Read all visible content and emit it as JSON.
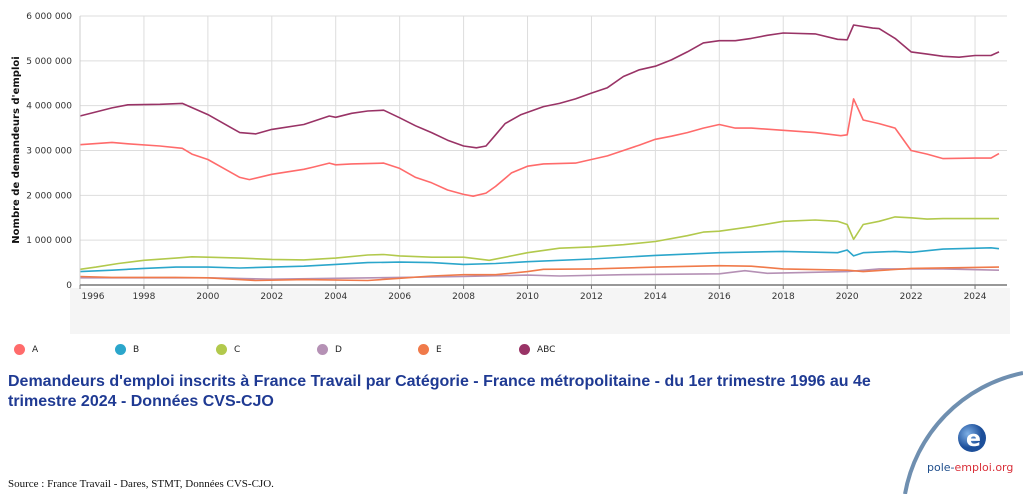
{
  "chart_data": {
    "type": "line",
    "title": "Demandeurs d'emploi inscrits à France Travail par Catégorie - France métropolitaine - du 1er trimestre 1996 au 4e trimestre 2024 - Données CVS-CJO",
    "xlabel": "",
    "ylabel": "Nombre de demandeurs d'emploi",
    "xlim": [
      1996,
      2025
    ],
    "ylim": [
      0,
      6000000
    ],
    "x_ticks": [
      "1996",
      "1998",
      "2000",
      "2002",
      "2004",
      "2006",
      "2008",
      "2010",
      "2012",
      "2014",
      "2016",
      "2018",
      "2020",
      "2022",
      "2024"
    ],
    "y_ticks": [
      "0",
      "1 000 000",
      "2 000 000",
      "3 000 000",
      "4 000 000",
      "5 000 000",
      "6 000 000"
    ],
    "grid": true,
    "legend_position": "bottom",
    "series": [
      {
        "name": "A",
        "color": "#ff6b6b",
        "points": [
          [
            1996,
            3130000
          ],
          [
            1997,
            3180000
          ],
          [
            1997.5,
            3150000
          ],
          [
            1998.5,
            3100000
          ],
          [
            1999.2,
            3050000
          ],
          [
            1999.5,
            2920000
          ],
          [
            2000,
            2800000
          ],
          [
            2000.5,
            2600000
          ],
          [
            2001,
            2400000
          ],
          [
            2001.3,
            2350000
          ],
          [
            2002,
            2470000
          ],
          [
            2003,
            2580000
          ],
          [
            2003.3,
            2630000
          ],
          [
            2003.8,
            2720000
          ],
          [
            2004,
            2680000
          ],
          [
            2004.5,
            2700000
          ],
          [
            2005.5,
            2720000
          ],
          [
            2006,
            2600000
          ],
          [
            2006.5,
            2400000
          ],
          [
            2007,
            2280000
          ],
          [
            2007.5,
            2120000
          ],
          [
            2008,
            2020000
          ],
          [
            2008.3,
            1980000
          ],
          [
            2008.7,
            2050000
          ],
          [
            2009,
            2200000
          ],
          [
            2009.5,
            2500000
          ],
          [
            2010,
            2650000
          ],
          [
            2010.5,
            2700000
          ],
          [
            2011.5,
            2720000
          ],
          [
            2012,
            2800000
          ],
          [
            2012.5,
            2880000
          ],
          [
            2013,
            3000000
          ],
          [
            2013.5,
            3120000
          ],
          [
            2014,
            3250000
          ],
          [
            2014.5,
            3320000
          ],
          [
            2015,
            3400000
          ],
          [
            2015.5,
            3500000
          ],
          [
            2016,
            3580000
          ],
          [
            2016.5,
            3500000
          ],
          [
            2017,
            3500000
          ],
          [
            2018,
            3450000
          ],
          [
            2019,
            3400000
          ],
          [
            2019.8,
            3330000
          ],
          [
            2020,
            3350000
          ],
          [
            2020.2,
            4150000
          ],
          [
            2020.5,
            3680000
          ],
          [
            2021,
            3600000
          ],
          [
            2021.5,
            3500000
          ],
          [
            2022,
            3000000
          ],
          [
            2022.5,
            2920000
          ],
          [
            2023,
            2820000
          ],
          [
            2024,
            2830000
          ],
          [
            2024.5,
            2830000
          ],
          [
            2024.75,
            2930000
          ]
        ]
      },
      {
        "name": "B",
        "color": "#2ba6cb",
        "points": [
          [
            1996,
            300000
          ],
          [
            1997,
            330000
          ],
          [
            1998,
            370000
          ],
          [
            1999,
            400000
          ],
          [
            2000,
            400000
          ],
          [
            2001,
            380000
          ],
          [
            2002,
            400000
          ],
          [
            2003,
            420000
          ],
          [
            2004,
            460000
          ],
          [
            2005,
            500000
          ],
          [
            2006,
            510000
          ],
          [
            2007,
            500000
          ],
          [
            2008,
            460000
          ],
          [
            2009,
            480000
          ],
          [
            2010,
            520000
          ],
          [
            2012,
            580000
          ],
          [
            2014,
            660000
          ],
          [
            2016,
            720000
          ],
          [
            2018,
            750000
          ],
          [
            2019.7,
            720000
          ],
          [
            2020,
            780000
          ],
          [
            2020.2,
            650000
          ],
          [
            2020.5,
            720000
          ],
          [
            2021.5,
            750000
          ],
          [
            2022,
            730000
          ],
          [
            2023,
            800000
          ],
          [
            2024.5,
            830000
          ],
          [
            2024.75,
            810000
          ]
        ]
      },
      {
        "name": "C",
        "color": "#b2c94c",
        "points": [
          [
            1996,
            350000
          ],
          [
            1996.5,
            400000
          ],
          [
            1997.2,
            480000
          ],
          [
            1998,
            550000
          ],
          [
            1999,
            600000
          ],
          [
            1999.5,
            630000
          ],
          [
            2000,
            620000
          ],
          [
            2001,
            600000
          ],
          [
            2002,
            570000
          ],
          [
            2003,
            560000
          ],
          [
            2004,
            600000
          ],
          [
            2005,
            670000
          ],
          [
            2005.5,
            680000
          ],
          [
            2006,
            650000
          ],
          [
            2007,
            620000
          ],
          [
            2008,
            620000
          ],
          [
            2008.8,
            550000
          ],
          [
            2009.5,
            650000
          ],
          [
            2010,
            720000
          ],
          [
            2011,
            820000
          ],
          [
            2012,
            850000
          ],
          [
            2013,
            900000
          ],
          [
            2014,
            970000
          ],
          [
            2015,
            1100000
          ],
          [
            2015.5,
            1180000
          ],
          [
            2016,
            1200000
          ],
          [
            2017,
            1300000
          ],
          [
            2018,
            1420000
          ],
          [
            2019,
            1450000
          ],
          [
            2019.7,
            1420000
          ],
          [
            2020,
            1350000
          ],
          [
            2020.2,
            1020000
          ],
          [
            2020.5,
            1350000
          ],
          [
            2021,
            1420000
          ],
          [
            2021.5,
            1520000
          ],
          [
            2022,
            1500000
          ],
          [
            2022.5,
            1470000
          ],
          [
            2023,
            1480000
          ],
          [
            2024.75,
            1480000
          ]
        ]
      },
      {
        "name": "D",
        "color": "#b591b5",
        "points": [
          [
            1996,
            160000
          ],
          [
            1998,
            160000
          ],
          [
            2000,
            160000
          ],
          [
            2002,
            130000
          ],
          [
            2004,
            150000
          ],
          [
            2006,
            170000
          ],
          [
            2008,
            190000
          ],
          [
            2010,
            220000
          ],
          [
            2011,
            200000
          ],
          [
            2013,
            230000
          ],
          [
            2016,
            250000
          ],
          [
            2016.8,
            320000
          ],
          [
            2017.5,
            260000
          ],
          [
            2020,
            300000
          ],
          [
            2021,
            360000
          ],
          [
            2023,
            360000
          ],
          [
            2024.75,
            330000
          ]
        ]
      },
      {
        "name": "E",
        "color": "#f07a4a",
        "points": [
          [
            1996,
            190000
          ],
          [
            1997,
            170000
          ],
          [
            1999,
            170000
          ],
          [
            2000,
            160000
          ],
          [
            2001.5,
            100000
          ],
          [
            2003,
            120000
          ],
          [
            2005,
            100000
          ],
          [
            2006,
            150000
          ],
          [
            2007,
            200000
          ],
          [
            2008,
            230000
          ],
          [
            2009,
            230000
          ],
          [
            2010,
            300000
          ],
          [
            2010.5,
            350000
          ],
          [
            2012,
            360000
          ],
          [
            2014,
            400000
          ],
          [
            2016,
            430000
          ],
          [
            2017,
            420000
          ],
          [
            2018,
            360000
          ],
          [
            2020,
            330000
          ],
          [
            2020.5,
            300000
          ],
          [
            2022,
            370000
          ],
          [
            2024.75,
            400000
          ]
        ]
      },
      {
        "name": "ABC",
        "color": "#993366",
        "points": [
          [
            1996,
            3770000
          ],
          [
            1997,
            3950000
          ],
          [
            1997.5,
            4020000
          ],
          [
            1998.5,
            4030000
          ],
          [
            1999.2,
            4050000
          ],
          [
            2000,
            3800000
          ],
          [
            2000.5,
            3600000
          ],
          [
            2001,
            3400000
          ],
          [
            2001.5,
            3370000
          ],
          [
            2002,
            3470000
          ],
          [
            2003,
            3580000
          ],
          [
            2003.8,
            3770000
          ],
          [
            2004,
            3740000
          ],
          [
            2004.5,
            3830000
          ],
          [
            2005,
            3880000
          ],
          [
            2005.5,
            3900000
          ],
          [
            2006,
            3730000
          ],
          [
            2006.5,
            3550000
          ],
          [
            2007,
            3400000
          ],
          [
            2007.5,
            3230000
          ],
          [
            2008,
            3100000
          ],
          [
            2008.4,
            3060000
          ],
          [
            2008.7,
            3100000
          ],
          [
            2009,
            3350000
          ],
          [
            2009.3,
            3600000
          ],
          [
            2009.8,
            3800000
          ],
          [
            2010.5,
            3980000
          ],
          [
            2011,
            4050000
          ],
          [
            2011.5,
            4150000
          ],
          [
            2012,
            4280000
          ],
          [
            2012.5,
            4400000
          ],
          [
            2013,
            4650000
          ],
          [
            2013.5,
            4800000
          ],
          [
            2014,
            4880000
          ],
          [
            2014.5,
            5020000
          ],
          [
            2015,
            5200000
          ],
          [
            2015.5,
            5400000
          ],
          [
            2016,
            5450000
          ],
          [
            2016.5,
            5450000
          ],
          [
            2017,
            5500000
          ],
          [
            2017.5,
            5570000
          ],
          [
            2018,
            5620000
          ],
          [
            2019,
            5600000
          ],
          [
            2019.7,
            5480000
          ],
          [
            2020,
            5470000
          ],
          [
            2020.2,
            5800000
          ],
          [
            2020.8,
            5730000
          ],
          [
            2021,
            5720000
          ],
          [
            2021.5,
            5500000
          ],
          [
            2022,
            5200000
          ],
          [
            2022.5,
            5150000
          ],
          [
            2023,
            5100000
          ],
          [
            2023.5,
            5080000
          ],
          [
            2024,
            5120000
          ],
          [
            2024.5,
            5120000
          ],
          [
            2024.75,
            5200000
          ]
        ]
      }
    ]
  },
  "source": "Source : France Travail - Dares, STMT, Données CVS-CJO.",
  "logo": {
    "text_part1": "pole-",
    "text_part2": "emploi.org"
  }
}
